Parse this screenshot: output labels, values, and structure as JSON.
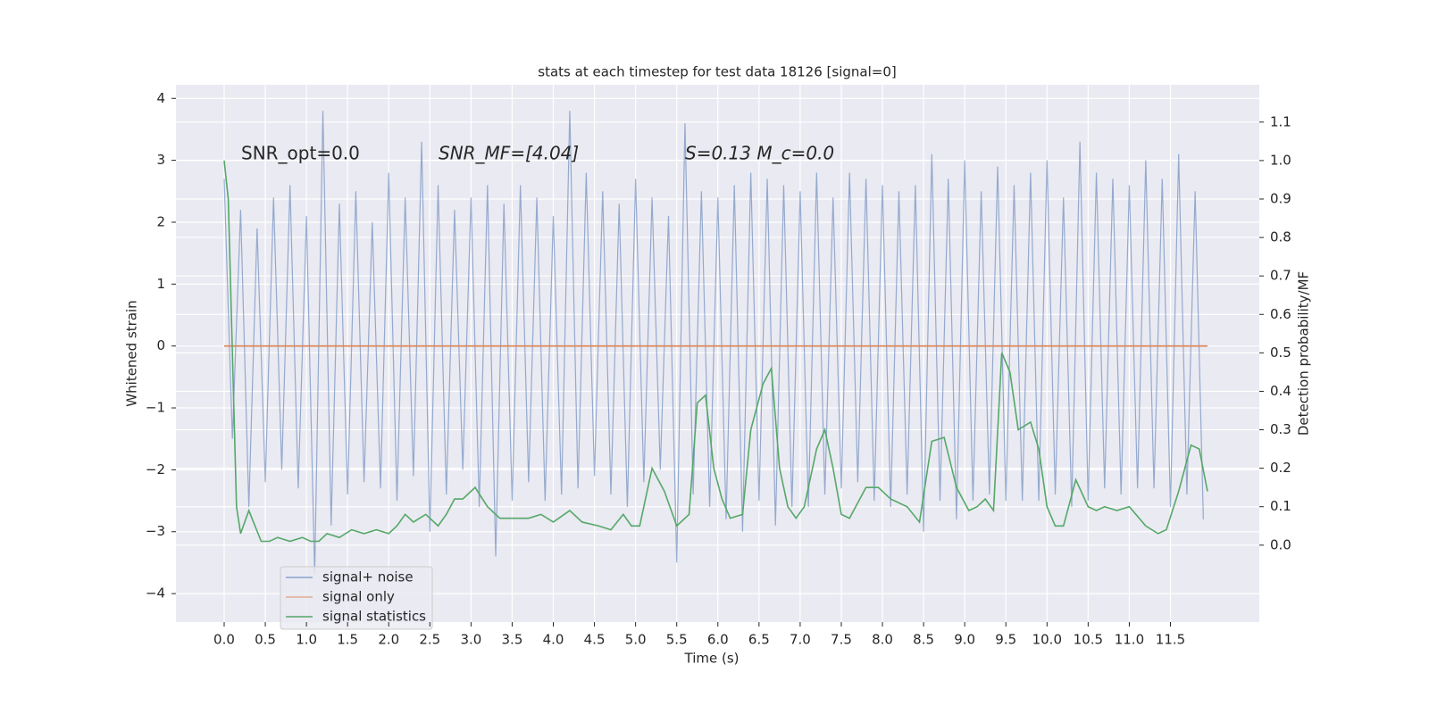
{
  "chart_data": {
    "type": "line",
    "title": "stats at each timestep for test data 18126 [signal=0]",
    "xlabel": "Time (s)",
    "ylabel": "Whitened strain",
    "y2label": "Detection probability/MF",
    "annotations": [
      "SNR_opt=0.0",
      "SNR_MF=[4.04]",
      "S=0.13   M_c=0.0"
    ],
    "xlim": [
      -0.586,
      12.58
    ],
    "ylim": [
      -4.46,
      4.22
    ],
    "y2lim": [
      -0.2,
      1.197
    ],
    "xticks": [
      {
        "value": 0,
        "label": "0.0"
      },
      {
        "value": 0.5,
        "label": "0.5"
      },
      {
        "value": 1,
        "label": "1.0"
      },
      {
        "value": 1.5,
        "label": "1.5"
      },
      {
        "value": 2,
        "label": "2.0"
      },
      {
        "value": 2.5,
        "label": "2.5"
      },
      {
        "value": 3,
        "label": "3.0"
      },
      {
        "value": 3.5,
        "label": "3.5"
      },
      {
        "value": 4,
        "label": "4.0"
      },
      {
        "value": 4.5,
        "label": "4.5"
      },
      {
        "value": 5,
        "label": "5.0"
      },
      {
        "value": 5.5,
        "label": "5.5"
      },
      {
        "value": 6,
        "label": "6.0"
      },
      {
        "value": 6.5,
        "label": "6.5"
      },
      {
        "value": 7,
        "label": "7.0"
      },
      {
        "value": 7.5,
        "label": "7.5"
      },
      {
        "value": 8,
        "label": "8.0"
      },
      {
        "value": 8.5,
        "label": "8.5"
      },
      {
        "value": 9,
        "label": "9.0"
      },
      {
        "value": 9.5,
        "label": "9.5"
      },
      {
        "value": 10,
        "label": "10.0"
      },
      {
        "value": 10.5,
        "label": "10.5"
      },
      {
        "value": 11,
        "label": "11.0"
      },
      {
        "value": 11.5,
        "label": "11.5"
      }
    ],
    "yticks": [
      {
        "value": -4,
        "label": "−4"
      },
      {
        "value": -3,
        "label": "−3"
      },
      {
        "value": -2,
        "label": "−2"
      },
      {
        "value": -1,
        "label": "−1"
      },
      0,
      1,
      2,
      3,
      4
    ],
    "y2ticks": [
      {
        "value": 0,
        "label": "0.0"
      },
      {
        "value": 0.1,
        "label": "0.1"
      },
      {
        "value": 0.2,
        "label": "0.2"
      },
      {
        "value": 0.3,
        "label": "0.3"
      },
      {
        "value": 0.4,
        "label": "0.4"
      },
      {
        "value": 0.5,
        "label": "0.5"
      },
      {
        "value": 0.6,
        "label": "0.6"
      },
      {
        "value": 0.7,
        "label": "0.7"
      },
      {
        "value": 0.8,
        "label": "0.8"
      },
      {
        "value": 0.9,
        "label": "0.9"
      },
      {
        "value": 1,
        "label": "1.0"
      },
      {
        "value": 1.1,
        "label": "1.1"
      }
    ],
    "grid": true,
    "legend": "lower left",
    "series": [
      {
        "name": "signal+ noise",
        "color": "#4c72b0",
        "x": [
          0,
          0.1,
          0.2,
          0.3,
          0.4,
          0.5,
          0.6,
          0.7,
          0.8,
          0.9,
          1,
          1.1,
          1.2,
          1.3,
          1.4,
          1.5,
          1.6,
          1.7,
          1.8,
          1.9,
          2,
          2.1,
          2.2,
          2.3,
          2.4,
          2.5,
          2.6,
          2.7,
          2.8,
          2.9,
          3,
          3.1,
          3.2,
          3.3,
          3.4,
          3.5,
          3.6,
          3.7,
          3.8,
          3.9,
          4,
          4.1,
          4.2,
          4.3,
          4.4,
          4.5,
          4.6,
          4.7,
          4.8,
          4.9,
          5,
          5.1,
          5.2,
          5.3,
          5.4,
          5.5,
          5.6,
          5.7,
          5.8,
          5.9,
          6,
          6.1,
          6.2,
          6.3,
          6.4,
          6.5,
          6.6,
          6.7,
          6.8,
          6.9,
          7,
          7.1,
          7.2,
          7.3,
          7.4,
          7.5,
          7.6,
          7.7,
          7.8,
          7.9,
          8,
          8.1,
          8.2,
          8.3,
          8.4,
          8.5,
          8.6,
          8.7,
          8.8,
          8.9,
          9,
          9.1,
          9.2,
          9.3,
          9.4,
          9.5,
          9.6,
          9.7,
          9.8,
          9.9,
          10,
          10.1,
          10.2,
          10.3,
          10.4,
          10.5,
          10.6,
          10.7,
          10.8,
          10.9,
          11,
          11.1,
          11.2,
          11.3,
          11.4,
          11.5,
          11.6,
          11.7,
          11.8,
          11.9
        ],
        "values": [
          2.7,
          -1.5,
          2.2,
          -2.6,
          1.9,
          -2.2,
          2.4,
          -2.0,
          2.6,
          -2.3,
          2.1,
          -3.7,
          3.8,
          -2.9,
          2.3,
          -2.4,
          2.5,
          -2.2,
          2.0,
          -2.3,
          2.8,
          -2.5,
          2.4,
          -2.1,
          3.3,
          -3.0,
          2.6,
          -2.4,
          2.2,
          -2.0,
          2.4,
          -2.6,
          2.6,
          -3.4,
          2.3,
          -2.5,
          2.6,
          -2.2,
          2.4,
          -2.5,
          2.1,
          -2.4,
          3.8,
          -2.3,
          2.8,
          -2.1,
          2.5,
          -2.4,
          2.3,
          -2.6,
          2.7,
          -2.2,
          2.4,
          -2.0,
          2.1,
          -3.5,
          3.6,
          -2.4,
          2.5,
          -2.6,
          2.4,
          -2.8,
          2.6,
          -3.0,
          2.8,
          -2.5,
          2.7,
          -2.9,
          2.6,
          -2.6,
          2.5,
          -2.6,
          2.8,
          -2.4,
          2.4,
          -2.3,
          2.8,
          -2.2,
          2.7,
          -2.5,
          2.6,
          -2.6,
          2.5,
          -2.4,
          2.6,
          -3.0,
          3.1,
          -2.5,
          2.7,
          -2.8,
          3.0,
          -2.5,
          2.5,
          -2.4,
          2.9,
          -2.5,
          2.6,
          -2.5,
          2.8,
          -2.5,
          3.0,
          -2.4,
          2.4,
          -2.6,
          3.3,
          -2.5,
          2.8,
          -2.3,
          2.7,
          -2.4,
          2.6,
          -2.3,
          3.0,
          -2.3,
          2.7,
          -2.6,
          3.1,
          -2.4,
          2.5,
          -2.8
        ]
      },
      {
        "name": "signal only",
        "color": "#dd8452",
        "x": [
          0,
          11.95
        ],
        "values": [
          0,
          0
        ]
      },
      {
        "name": "signal statistics",
        "color": "#55a868",
        "axis": "y2",
        "x": [
          0,
          0.05,
          0.1,
          0.15,
          0.2,
          0.3,
          0.45,
          0.55,
          0.65,
          0.8,
          0.95,
          1.05,
          1.15,
          1.25,
          1.4,
          1.55,
          1.7,
          1.85,
          2.0,
          2.1,
          2.2,
          2.3,
          2.45,
          2.6,
          2.7,
          2.8,
          2.9,
          3.05,
          3.2,
          3.35,
          3.5,
          3.7,
          3.85,
          4.0,
          4.2,
          4.35,
          4.55,
          4.7,
          4.85,
          4.95,
          5.05,
          5.2,
          5.35,
          5.5,
          5.65,
          5.75,
          5.85,
          5.95,
          6.05,
          6.15,
          6.3,
          6.4,
          6.55,
          6.65,
          6.75,
          6.85,
          6.95,
          7.05,
          7.2,
          7.3,
          7.4,
          7.5,
          7.6,
          7.8,
          7.95,
          8.1,
          8.3,
          8.45,
          8.6,
          8.75,
          8.9,
          9.05,
          9.15,
          9.25,
          9.35,
          9.45,
          9.55,
          9.65,
          9.8,
          9.9,
          10.0,
          10.1,
          10.2,
          10.35,
          10.5,
          10.6,
          10.7,
          10.85,
          11.0,
          11.2,
          11.35,
          11.45,
          11.6,
          11.75,
          11.85,
          11.95
        ],
        "values": [
          1.0,
          0.9,
          0.5,
          0.1,
          0.03,
          0.09,
          0.01,
          0.01,
          0.02,
          0.01,
          0.02,
          0.01,
          0.01,
          0.03,
          0.02,
          0.04,
          0.03,
          0.04,
          0.03,
          0.05,
          0.08,
          0.06,
          0.08,
          0.05,
          0.08,
          0.12,
          0.12,
          0.15,
          0.1,
          0.07,
          0.07,
          0.07,
          0.08,
          0.06,
          0.09,
          0.06,
          0.05,
          0.04,
          0.08,
          0.05,
          0.05,
          0.2,
          0.14,
          0.05,
          0.08,
          0.37,
          0.39,
          0.2,
          0.12,
          0.07,
          0.08,
          0.3,
          0.42,
          0.46,
          0.2,
          0.1,
          0.07,
          0.1,
          0.25,
          0.3,
          0.2,
          0.08,
          0.07,
          0.15,
          0.15,
          0.12,
          0.1,
          0.06,
          0.27,
          0.28,
          0.15,
          0.09,
          0.1,
          0.12,
          0.09,
          0.5,
          0.45,
          0.3,
          0.32,
          0.25,
          0.1,
          0.05,
          0.05,
          0.17,
          0.1,
          0.09,
          0.1,
          0.09,
          0.1,
          0.05,
          0.03,
          0.04,
          0.14,
          0.26,
          0.25,
          0.14
        ]
      }
    ]
  }
}
